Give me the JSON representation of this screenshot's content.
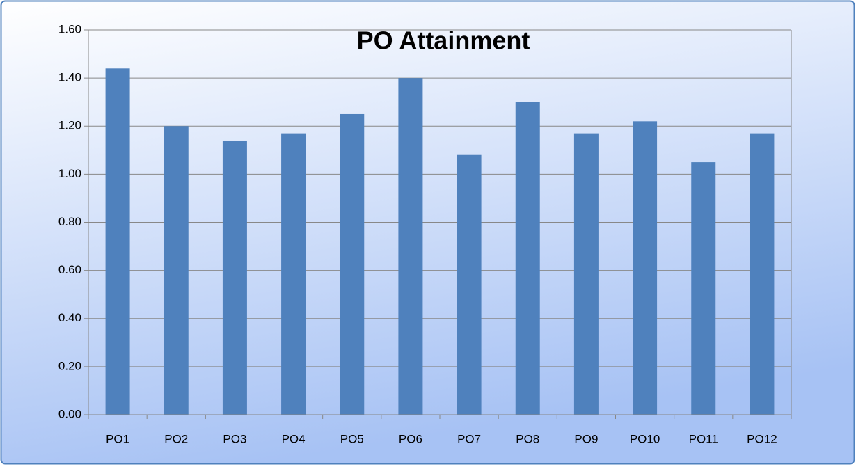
{
  "chart_data": {
    "type": "bar",
    "title": "PO Attainment",
    "categories": [
      "PO1",
      "PO2",
      "PO3",
      "PO4",
      "PO5",
      "PO6",
      "PO7",
      "PO8",
      "PO9",
      "PO10",
      "PO11",
      "PO12"
    ],
    "values": [
      1.44,
      1.2,
      1.14,
      1.17,
      1.25,
      1.4,
      1.08,
      1.3,
      1.17,
      1.22,
      1.05,
      1.17
    ],
    "color": "#4f81bd",
    "ylim": [
      0,
      1.6
    ],
    "yticks": [
      {
        "value": 0,
        "label": "0.00"
      },
      {
        "value": 0.2,
        "label": "0.20"
      },
      {
        "value": 0.4,
        "label": "0.40"
      },
      {
        "value": 0.6,
        "label": "0.60"
      },
      {
        "value": 0.8,
        "label": "0.80"
      },
      {
        "value": 1.0,
        "label": "1.00"
      },
      {
        "value": 1.2,
        "label": "1.20"
      },
      {
        "value": 1.4,
        "label": "1.40"
      },
      {
        "value": 1.6,
        "label": "1.60"
      }
    ],
    "grid": true
  }
}
